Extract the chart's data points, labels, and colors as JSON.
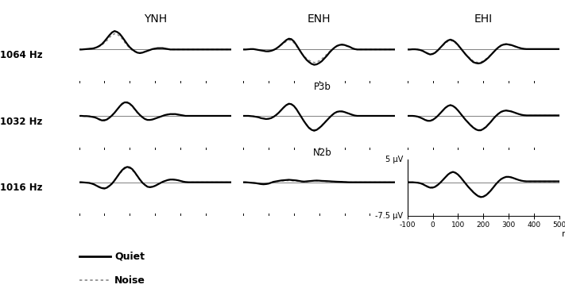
{
  "col_titles": [
    "YNH",
    "ENH",
    "EHI"
  ],
  "row_labels": [
    "1064 Hz",
    "1032 Hz",
    "1016 Hz"
  ],
  "ylim": [
    -7.5,
    5.0
  ],
  "xticks": [
    -100,
    0,
    100,
    200,
    300,
    400,
    500
  ],
  "background_color": "#ffffff",
  "line_color_quiet": "#000000",
  "line_color_noise": "#888888",
  "linewidth_quiet": 1.6,
  "linewidth_noise": 1.1,
  "waveforms": {
    "YNH_1064_quiet": [
      0.0,
      0.0,
      0.05,
      0.1,
      0.15,
      0.2,
      0.3,
      0.5,
      0.8,
      1.2,
      1.8,
      2.5,
      3.2,
      3.8,
      4.1,
      3.9,
      3.5,
      2.8,
      2.0,
      1.2,
      0.5,
      0.0,
      -0.4,
      -0.7,
      -0.8,
      -0.7,
      -0.5,
      -0.3,
      -0.1,
      0.1,
      0.2,
      0.3,
      0.3,
      0.3,
      0.2,
      0.1,
      0.0,
      0.0,
      0.0,
      0.0,
      0.0,
      0.0,
      0.0,
      0.0,
      0.0,
      0.0,
      0.0,
      0.0,
      0.0,
      0.0,
      0.0,
      0.0,
      0.0,
      0.0,
      0.0,
      0.0,
      0.0,
      0.0,
      0.0,
      0.0,
      0.0
    ],
    "YNH_1064_noise": [
      0.0,
      0.0,
      0.05,
      0.1,
      0.15,
      0.2,
      0.3,
      0.5,
      0.7,
      1.0,
      1.5,
      2.0,
      2.7,
      3.2,
      3.5,
      3.4,
      3.0,
      2.4,
      1.6,
      0.9,
      0.3,
      -0.2,
      -0.5,
      -0.7,
      -0.75,
      -0.65,
      -0.45,
      -0.25,
      -0.08,
      0.08,
      0.18,
      0.25,
      0.28,
      0.28,
      0.22,
      0.12,
      0.05,
      0.0,
      0.0,
      0.0,
      0.0,
      0.0,
      0.0,
      0.0,
      0.0,
      0.0,
      0.0,
      0.0,
      0.0,
      0.0,
      0.0,
      0.0,
      0.0,
      0.0,
      0.0,
      0.0,
      0.0,
      0.0,
      0.0,
      0.0,
      0.0
    ],
    "YNH_1032_quiet": [
      0.0,
      0.0,
      -0.05,
      -0.05,
      -0.1,
      -0.2,
      -0.3,
      -0.5,
      -0.8,
      -1.0,
      -1.0,
      -0.8,
      -0.4,
      0.1,
      0.7,
      1.4,
      2.1,
      2.7,
      3.0,
      3.0,
      2.7,
      2.2,
      1.5,
      0.8,
      0.2,
      -0.3,
      -0.7,
      -0.9,
      -0.9,
      -0.8,
      -0.6,
      -0.4,
      -0.2,
      0.0,
      0.2,
      0.3,
      0.4,
      0.4,
      0.4,
      0.3,
      0.2,
      0.1,
      0.0,
      0.0,
      0.0,
      0.0,
      0.0,
      0.0,
      0.0,
      0.0,
      0.0,
      0.0,
      0.0,
      0.0,
      0.0,
      0.0,
      0.0,
      0.0,
      0.0,
      0.0,
      0.0
    ],
    "YNH_1032_noise": [
      0.0,
      0.0,
      -0.05,
      -0.05,
      -0.1,
      -0.2,
      -0.3,
      -0.5,
      -0.7,
      -0.9,
      -0.85,
      -0.65,
      -0.3,
      0.15,
      0.75,
      1.4,
      2.0,
      2.55,
      2.85,
      2.9,
      2.6,
      2.1,
      1.4,
      0.7,
      0.1,
      -0.35,
      -0.65,
      -0.85,
      -0.9,
      -0.8,
      -0.6,
      -0.4,
      -0.2,
      0.0,
      0.2,
      0.35,
      0.4,
      0.35,
      0.3,
      0.25,
      0.15,
      0.08,
      0.02,
      0.0,
      0.0,
      0.0,
      0.0,
      0.0,
      0.0,
      0.0,
      0.0,
      0.0,
      0.0,
      0.0,
      0.0,
      0.0,
      0.0,
      0.0,
      0.0,
      0.0,
      0.0
    ],
    "YNH_1016_quiet": [
      0.0,
      0.0,
      -0.05,
      -0.1,
      -0.15,
      -0.3,
      -0.5,
      -0.8,
      -1.1,
      -1.3,
      -1.4,
      -1.2,
      -0.8,
      -0.3,
      0.4,
      1.2,
      2.0,
      2.7,
      3.2,
      3.4,
      3.3,
      2.9,
      2.2,
      1.4,
      0.6,
      -0.1,
      -0.6,
      -1.0,
      -1.1,
      -1.0,
      -0.8,
      -0.5,
      -0.2,
      0.1,
      0.3,
      0.5,
      0.6,
      0.6,
      0.55,
      0.45,
      0.3,
      0.15,
      0.05,
      0.0,
      0.0,
      0.0,
      0.0,
      0.0,
      0.0,
      0.0,
      0.0,
      0.0,
      0.0,
      0.0,
      0.0,
      0.0,
      0.0,
      0.0,
      0.0,
      0.0,
      0.0
    ],
    "YNH_1016_noise": [
      0.0,
      0.0,
      -0.05,
      -0.1,
      -0.15,
      -0.3,
      -0.5,
      -0.75,
      -1.0,
      -1.15,
      -1.25,
      -1.1,
      -0.7,
      -0.2,
      0.5,
      1.2,
      1.9,
      2.5,
      3.0,
      3.2,
      3.1,
      2.7,
      2.1,
      1.3,
      0.5,
      -0.15,
      -0.6,
      -0.95,
      -1.05,
      -0.95,
      -0.75,
      -0.48,
      -0.18,
      0.1,
      0.32,
      0.5,
      0.58,
      0.6,
      0.55,
      0.45,
      0.3,
      0.15,
      0.05,
      0.0,
      0.0,
      0.0,
      0.0,
      0.0,
      0.0,
      0.0,
      0.0,
      0.0,
      0.0,
      0.0,
      0.0,
      0.0,
      0.0,
      0.0,
      0.0,
      0.0,
      0.0
    ],
    "ENH_1064_quiet": [
      0.0,
      0.0,
      0.05,
      0.1,
      0.1,
      0.0,
      -0.1,
      -0.2,
      -0.3,
      -0.4,
      -0.4,
      -0.3,
      -0.1,
      0.2,
      0.6,
      1.1,
      1.6,
      2.1,
      2.4,
      2.3,
      1.8,
      1.0,
      0.1,
      -0.8,
      -1.6,
      -2.3,
      -2.8,
      -3.2,
      -3.4,
      -3.3,
      -3.0,
      -2.6,
      -2.0,
      -1.4,
      -0.7,
      -0.1,
      0.4,
      0.8,
      1.0,
      1.1,
      1.0,
      0.8,
      0.6,
      0.3,
      0.1,
      0.0,
      0.0,
      0.0,
      0.0,
      0.0,
      0.0,
      0.0,
      0.0,
      0.0,
      0.0,
      0.0,
      0.0,
      0.0,
      0.0,
      0.0,
      0.0
    ],
    "ENH_1064_noise": [
      0.0,
      0.0,
      0.05,
      0.1,
      0.1,
      0.0,
      -0.1,
      -0.15,
      -0.25,
      -0.35,
      -0.35,
      -0.25,
      -0.05,
      0.2,
      0.6,
      1.0,
      1.4,
      1.8,
      2.1,
      2.0,
      1.5,
      0.8,
      0.0,
      -0.8,
      -1.5,
      -2.0,
      -2.4,
      -2.7,
      -2.9,
      -2.8,
      -2.5,
      -2.1,
      -1.6,
      -1.05,
      -0.5,
      0.0,
      0.4,
      0.75,
      0.95,
      1.0,
      0.9,
      0.75,
      0.55,
      0.28,
      0.08,
      0.0,
      0.0,
      0.0,
      0.0,
      0.0,
      0.0,
      0.0,
      0.0,
      0.0,
      0.0,
      0.0,
      0.0,
      0.0,
      0.0,
      0.0,
      0.0
    ],
    "ENH_1032_quiet": [
      0.0,
      0.0,
      0.0,
      -0.05,
      -0.1,
      -0.2,
      -0.3,
      -0.5,
      -0.6,
      -0.7,
      -0.65,
      -0.5,
      -0.2,
      0.2,
      0.7,
      1.3,
      1.9,
      2.4,
      2.7,
      2.6,
      2.2,
      1.5,
      0.6,
      -0.3,
      -1.2,
      -2.0,
      -2.7,
      -3.1,
      -3.3,
      -3.1,
      -2.7,
      -2.2,
      -1.6,
      -1.0,
      -0.4,
      0.15,
      0.6,
      0.9,
      1.0,
      1.0,
      0.85,
      0.65,
      0.45,
      0.25,
      0.08,
      0.0,
      0.0,
      0.0,
      0.0,
      0.0,
      0.0,
      0.0,
      0.0,
      0.0,
      0.0,
      0.0,
      0.0,
      0.0,
      0.0,
      0.0,
      0.0
    ],
    "ENH_1032_noise": [
      0.0,
      0.0,
      0.0,
      -0.05,
      -0.1,
      -0.2,
      -0.3,
      -0.45,
      -0.55,
      -0.65,
      -0.6,
      -0.45,
      -0.18,
      0.2,
      0.7,
      1.3,
      1.85,
      2.3,
      2.6,
      2.55,
      2.15,
      1.45,
      0.55,
      -0.35,
      -1.2,
      -1.9,
      -2.55,
      -2.95,
      -3.1,
      -2.95,
      -2.6,
      -2.1,
      -1.5,
      -0.9,
      -0.35,
      0.15,
      0.6,
      0.85,
      0.95,
      0.95,
      0.82,
      0.62,
      0.42,
      0.22,
      0.06,
      0.0,
      0.0,
      0.0,
      0.0,
      0.0,
      0.0,
      0.0,
      0.0,
      0.0,
      0.0,
      0.0,
      0.0,
      0.0,
      0.0,
      0.0,
      0.0
    ],
    "ENH_1016_quiet": [
      0.0,
      0.0,
      -0.05,
      -0.1,
      -0.15,
      -0.2,
      -0.3,
      -0.4,
      -0.45,
      -0.4,
      -0.3,
      -0.1,
      0.1,
      0.2,
      0.3,
      0.4,
      0.45,
      0.5,
      0.55,
      0.5,
      0.45,
      0.4,
      0.3,
      0.2,
      0.15,
      0.2,
      0.25,
      0.3,
      0.35,
      0.38,
      0.35,
      0.3,
      0.28,
      0.25,
      0.22,
      0.18,
      0.15,
      0.12,
      0.1,
      0.08,
      0.05,
      0.02,
      0.0,
      0.0,
      0.0,
      0.0,
      0.0,
      0.0,
      0.0,
      0.0,
      0.0,
      0.0,
      0.0,
      0.0,
      0.0,
      0.0,
      0.0,
      0.0,
      0.0,
      0.0,
      0.0
    ],
    "ENH_1016_noise": [
      0.0,
      0.0,
      -0.05,
      -0.08,
      -0.12,
      -0.18,
      -0.25,
      -0.35,
      -0.38,
      -0.32,
      -0.22,
      -0.05,
      0.08,
      0.15,
      0.22,
      0.28,
      0.32,
      0.35,
      0.38,
      0.35,
      0.3,
      0.25,
      0.2,
      0.15,
      0.12,
      0.16,
      0.2,
      0.25,
      0.28,
      0.3,
      0.28,
      0.25,
      0.22,
      0.2,
      0.18,
      0.15,
      0.12,
      0.1,
      0.08,
      0.06,
      0.04,
      0.02,
      0.0,
      0.0,
      0.0,
      0.0,
      0.0,
      0.0,
      0.0,
      0.0,
      0.0,
      0.0,
      0.0,
      0.0,
      0.0,
      0.0,
      0.0,
      0.0,
      0.0,
      0.0,
      0.0
    ],
    "EHI_1064_quiet": [
      0.0,
      0.0,
      0.05,
      0.05,
      0.0,
      -0.1,
      -0.3,
      -0.6,
      -0.9,
      -1.1,
      -1.0,
      -0.7,
      -0.2,
      0.4,
      1.0,
      1.6,
      2.0,
      2.2,
      2.0,
      1.6,
      1.0,
      0.3,
      -0.4,
      -1.1,
      -1.7,
      -2.3,
      -2.8,
      -3.0,
      -3.1,
      -3.0,
      -2.7,
      -2.3,
      -1.8,
      -1.2,
      -0.6,
      0.0,
      0.5,
      0.9,
      1.1,
      1.2,
      1.1,
      1.0,
      0.8,
      0.6,
      0.4,
      0.25,
      0.15,
      0.1,
      0.1,
      0.1,
      0.1,
      0.1,
      0.1,
      0.1,
      0.1,
      0.1,
      0.1,
      0.1,
      0.1,
      0.1,
      0.1
    ],
    "EHI_1064_noise": [
      0.0,
      0.0,
      0.05,
      0.05,
      0.0,
      -0.1,
      -0.3,
      -0.55,
      -0.8,
      -1.0,
      -0.9,
      -0.6,
      -0.15,
      0.4,
      0.9,
      1.4,
      1.8,
      2.0,
      1.85,
      1.45,
      0.9,
      0.25,
      -0.4,
      -1.05,
      -1.6,
      -2.1,
      -2.55,
      -2.8,
      -2.9,
      -2.8,
      -2.5,
      -2.1,
      -1.65,
      -1.1,
      -0.55,
      0.0,
      0.45,
      0.82,
      1.0,
      1.1,
      1.05,
      0.92,
      0.75,
      0.56,
      0.38,
      0.22,
      0.12,
      0.08,
      0.08,
      0.08,
      0.08,
      0.08,
      0.08,
      0.08,
      0.08,
      0.08,
      0.08,
      0.08,
      0.08,
      0.08,
      0.08
    ],
    "EHI_1032_quiet": [
      0.0,
      0.0,
      0.0,
      -0.05,
      -0.15,
      -0.35,
      -0.6,
      -0.9,
      -1.1,
      -1.1,
      -0.9,
      -0.5,
      0.0,
      0.6,
      1.2,
      1.8,
      2.2,
      2.4,
      2.2,
      1.8,
      1.2,
      0.5,
      -0.2,
      -0.9,
      -1.5,
      -2.1,
      -2.6,
      -3.0,
      -3.2,
      -3.2,
      -2.9,
      -2.5,
      -1.9,
      -1.3,
      -0.6,
      0.0,
      0.5,
      0.9,
      1.1,
      1.2,
      1.1,
      1.0,
      0.8,
      0.6,
      0.4,
      0.25,
      0.15,
      0.1,
      0.1,
      0.1,
      0.1,
      0.1,
      0.1,
      0.1,
      0.1,
      0.1,
      0.1,
      0.1,
      0.1,
      0.1,
      0.1
    ],
    "EHI_1032_noise": [
      0.0,
      0.0,
      0.0,
      -0.05,
      -0.15,
      -0.35,
      -0.6,
      -0.85,
      -1.0,
      -1.0,
      -0.82,
      -0.42,
      0.05,
      0.62,
      1.2,
      1.75,
      2.15,
      2.35,
      2.15,
      1.75,
      1.15,
      0.45,
      -0.22,
      -0.88,
      -1.48,
      -2.0,
      -2.5,
      -2.88,
      -3.08,
      -3.08,
      -2.8,
      -2.4,
      -1.82,
      -1.22,
      -0.55,
      0.05,
      0.52,
      0.88,
      1.08,
      1.15,
      1.08,
      0.95,
      0.75,
      0.56,
      0.38,
      0.22,
      0.12,
      0.08,
      0.08,
      0.08,
      0.08,
      0.08,
      0.08,
      0.08,
      0.08,
      0.08,
      0.08,
      0.08,
      0.08,
      0.08,
      0.08
    ],
    "EHI_1016_quiet": [
      0.0,
      0.0,
      0.0,
      -0.05,
      -0.1,
      -0.2,
      -0.4,
      -0.7,
      -1.0,
      -1.2,
      -1.2,
      -1.0,
      -0.6,
      -0.1,
      0.5,
      1.1,
      1.7,
      2.1,
      2.3,
      2.1,
      1.7,
      1.1,
      0.4,
      -0.3,
      -1.0,
      -1.6,
      -2.2,
      -2.7,
      -3.1,
      -3.3,
      -3.2,
      -2.9,
      -2.4,
      -1.8,
      -1.1,
      -0.4,
      0.2,
      0.7,
      1.0,
      1.2,
      1.2,
      1.1,
      0.9,
      0.7,
      0.5,
      0.35,
      0.25,
      0.2,
      0.2,
      0.2,
      0.2,
      0.2,
      0.2,
      0.2,
      0.2,
      0.2,
      0.2,
      0.2,
      0.2,
      0.2,
      0.2
    ],
    "EHI_1016_noise": [
      0.0,
      0.0,
      0.0,
      -0.05,
      -0.1,
      -0.2,
      -0.4,
      -0.65,
      -0.9,
      -1.08,
      -1.08,
      -0.88,
      -0.5,
      -0.05,
      0.52,
      1.08,
      1.65,
      2.05,
      2.25,
      2.08,
      1.65,
      1.05,
      0.38,
      -0.28,
      -0.95,
      -1.55,
      -2.12,
      -2.62,
      -3.0,
      -3.18,
      -3.1,
      -2.8,
      -2.32,
      -1.72,
      -1.05,
      -0.35,
      0.22,
      0.68,
      0.98,
      1.15,
      1.15,
      1.05,
      0.85,
      0.65,
      0.48,
      0.32,
      0.22,
      0.18,
      0.18,
      0.18,
      0.18,
      0.18,
      0.18,
      0.18,
      0.18,
      0.18,
      0.18,
      0.18,
      0.18,
      0.18,
      0.18
    ]
  }
}
